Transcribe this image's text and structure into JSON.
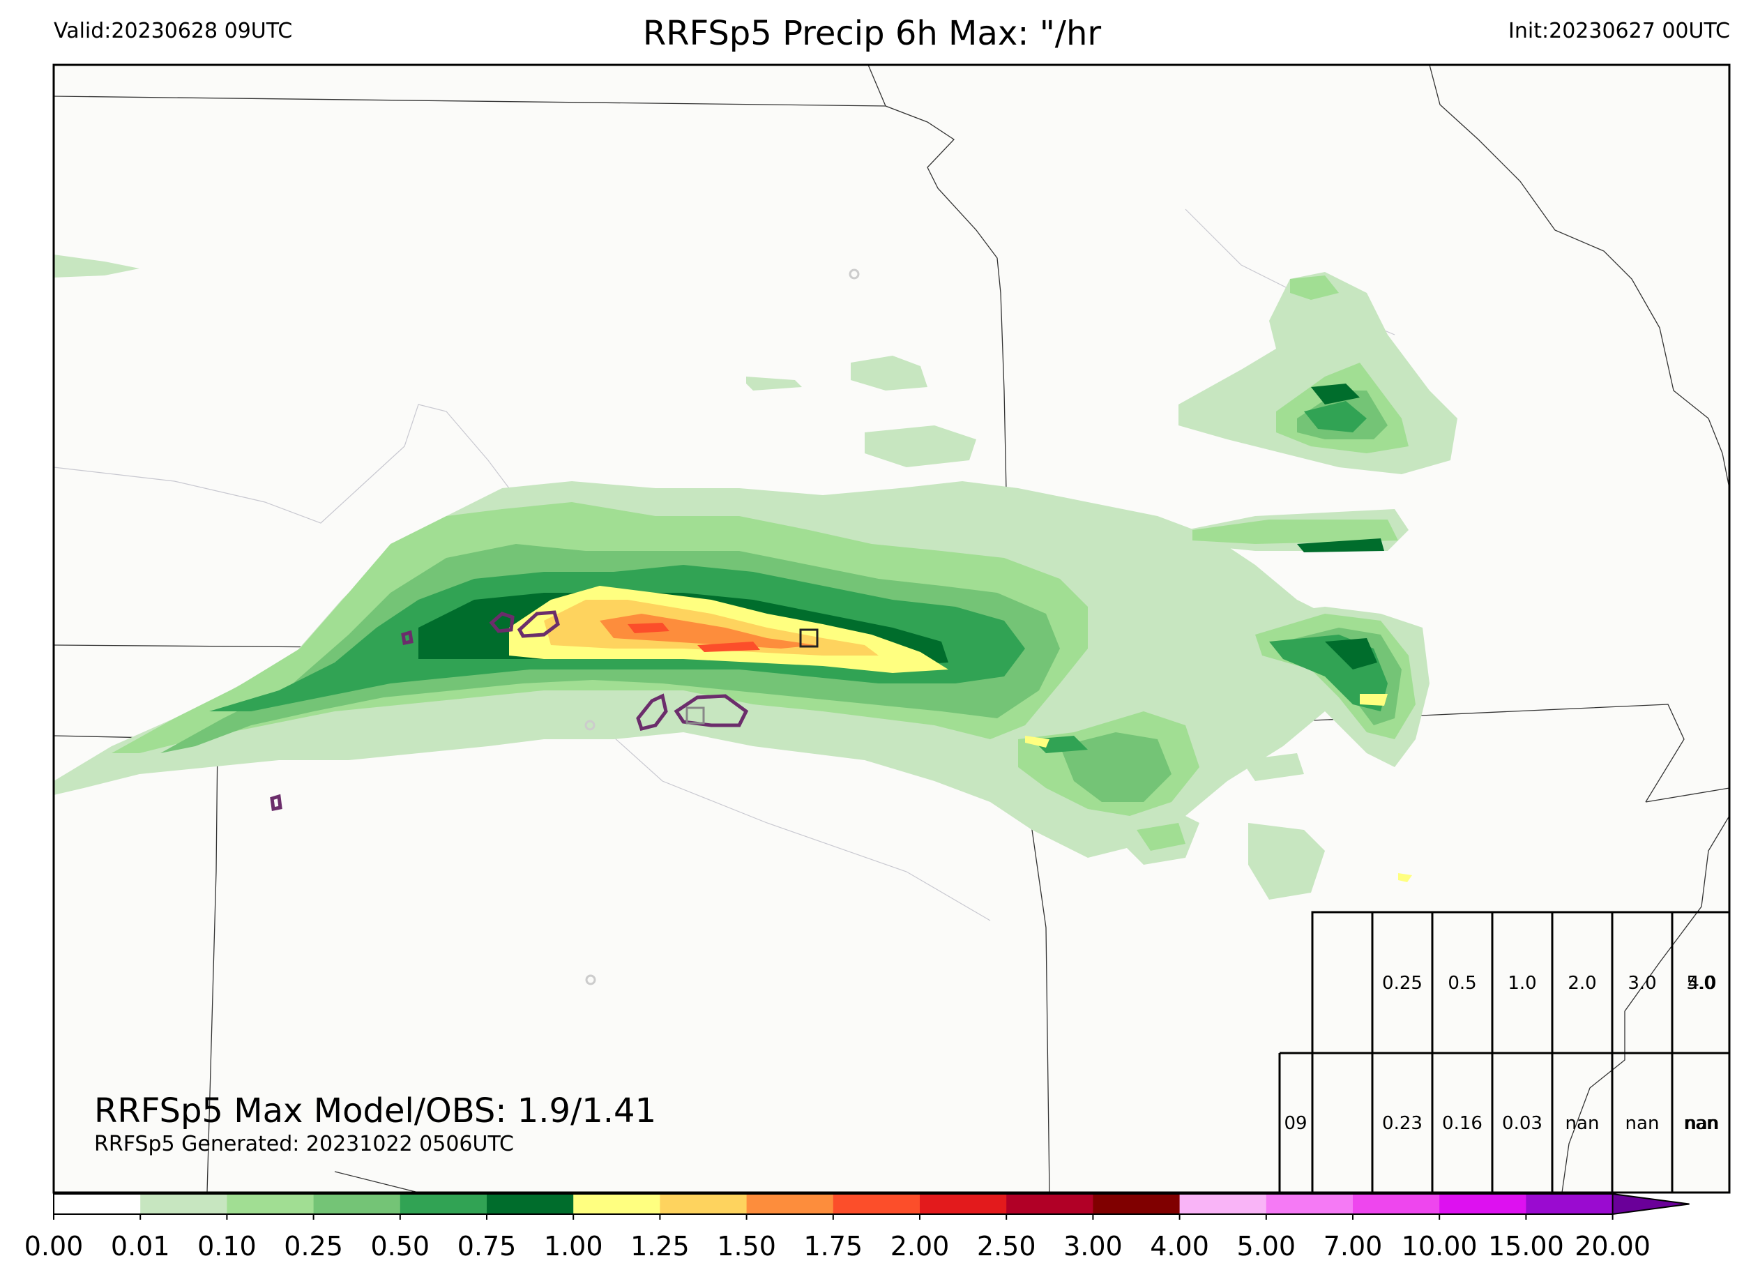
{
  "header": {
    "valid": "Valid:20230628 09UTC",
    "title": "RRFSp5 Precip 6h Max: \"/hr",
    "init": "Init:20230627 00UTC"
  },
  "annotations": {
    "max_model_obs": "RRFSp5 Max Model/OBS: 1.9/1.41",
    "generated": "RRFSp5 Generated: 20231022 0506UTC"
  },
  "colorbar": {
    "ticks": [
      "0.00",
      "0.01",
      "0.10",
      "0.25",
      "0.50",
      "0.75",
      "1.00",
      "1.25",
      "1.50",
      "1.75",
      "2.00",
      "2.50",
      "3.00",
      "4.00",
      "5.00",
      "7.00",
      "10.00",
      "15.00",
      "20.00"
    ],
    "colors": [
      "#ffffff",
      "#c7e6c0",
      "#a1de93",
      "#74c476",
      "#31a354",
      "#006d2c",
      "#ffff80",
      "#fed35e",
      "#fd8d3c",
      "#fc4e2a",
      "#e31a1c",
      "#b10026",
      "#800000",
      "#f9b4f7",
      "#f57af5",
      "#ee46ee",
      "#dd11f0",
      "#9a0bd0"
    ],
    "extend_color": "#6a0099"
  },
  "stats_table": {
    "thresholds": [
      "0.25",
      "0.5",
      "1.0",
      "2.0",
      "3.0",
      "4.0",
      "5.0"
    ],
    "row_label": "09",
    "row_values": [
      "0.23",
      "0.16",
      "0.03",
      "nan",
      "nan",
      "nan",
      "nan"
    ]
  },
  "map": {
    "background": "#fbfbf9",
    "border_color": "#333333",
    "obs_contour_color": "#6b2d6b"
  }
}
